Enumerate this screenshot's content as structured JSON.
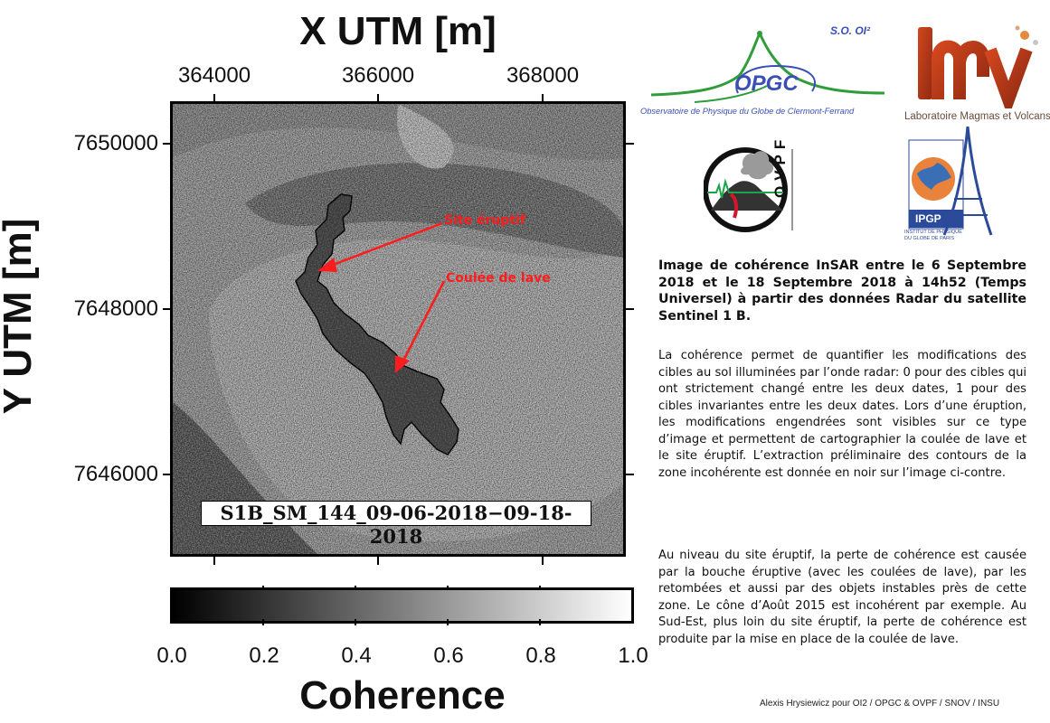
{
  "map": {
    "x_axis_label": "X UTM [m]",
    "y_axis_label": "Y UTM [m]",
    "x_ticks": [
      "364000",
      "366000",
      "368000"
    ],
    "y_ticks": [
      "7650000",
      "7648000",
      "7646000"
    ],
    "scene_id": "S1B_SM_144_09-06-2018−09-18-2018",
    "annotations": {
      "eruptive_site": "Site éruptif",
      "lava_flow": "Coulée de lave"
    },
    "annotation_color": "#ff1c1c"
  },
  "colorbar": {
    "label": "Coherence",
    "ticks": [
      "0.0",
      "0.2",
      "0.4",
      "0.6",
      "0.8",
      "1.0"
    ],
    "range": [
      0.0,
      1.0
    ],
    "colormap": "grayscale black-to-white"
  },
  "logos": {
    "opgc": {
      "name": "OPGC",
      "corner": "S.O. OI²",
      "subtitle": "Observatoire de Physique du Globe de Clermont-Ferrand"
    },
    "lmv": {
      "name": "lmv",
      "subtitle": "Laboratoire Magmas et Volcans"
    },
    "ovpf": {
      "name": "OVPF"
    },
    "ipgp": {
      "name": "IPGP",
      "subtitle_line1": "INSTITUT DE PHYSIQUE",
      "subtitle_line2": "DU GLOBE DE PARIS"
    }
  },
  "description": {
    "title": "Image de cohérence InSAR entre le 6 Septembre 2018 et le 18 Septembre 2018 à 14h52 (Temps Universel) à partir des données Radar du satellite Sentinel 1 B.",
    "paragraph1": "La cohérence permet de quantifier les modifications des cibles au sol illuminées par l’onde radar: 0 pour des cibles qui ont strictement changé entre les deux dates, 1 pour des cibles invariantes entre les deux dates. Lors d’une éruption, les modifications engendrées sont visibles sur ce type d’image et permettent de cartographier la coulée de lave et le site éruptif. L’extraction préliminaire des contours de la zone incohérente est donnée en noir sur l’image ci-contre.",
    "paragraph2": "Au niveau du site éruptif, la perte de cohérence est causée par la bouche éruptive (avec les coulées de lave), par les retombées et aussi par des objets instables près de cette zone. Le cône d’Août 2015 est incohérent par exemple. Au Sud-Est, plus loin du site éruptif, la perte de cohérence est produite par la mise en place de la coulée de lave."
  },
  "credit": "Alexis Hrysiewicz pour  OI2 / OPGC & OVPF / SNOV / INSU"
}
